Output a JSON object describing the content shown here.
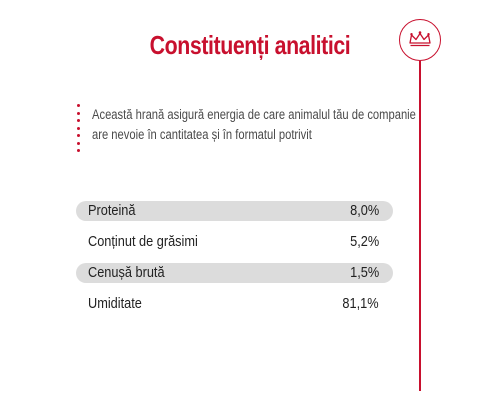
{
  "heading": "Constituenți analitici",
  "brand": {
    "accent_color": "#c8102e",
    "icon": "crown-icon"
  },
  "intro": {
    "line1": "Această hrană asigură energia de care animalul tău de companie",
    "line2": "are nevoie în cantitatea și în formatul potrivit"
  },
  "constituents": [
    {
      "label": "Proteină",
      "value": "8,0%"
    },
    {
      "label": "Conținut de grăsimi",
      "value": "5,2%"
    },
    {
      "label": "Cenușă brută",
      "value": "1,5%"
    },
    {
      "label": "Umiditate",
      "value": "81,1%"
    }
  ]
}
